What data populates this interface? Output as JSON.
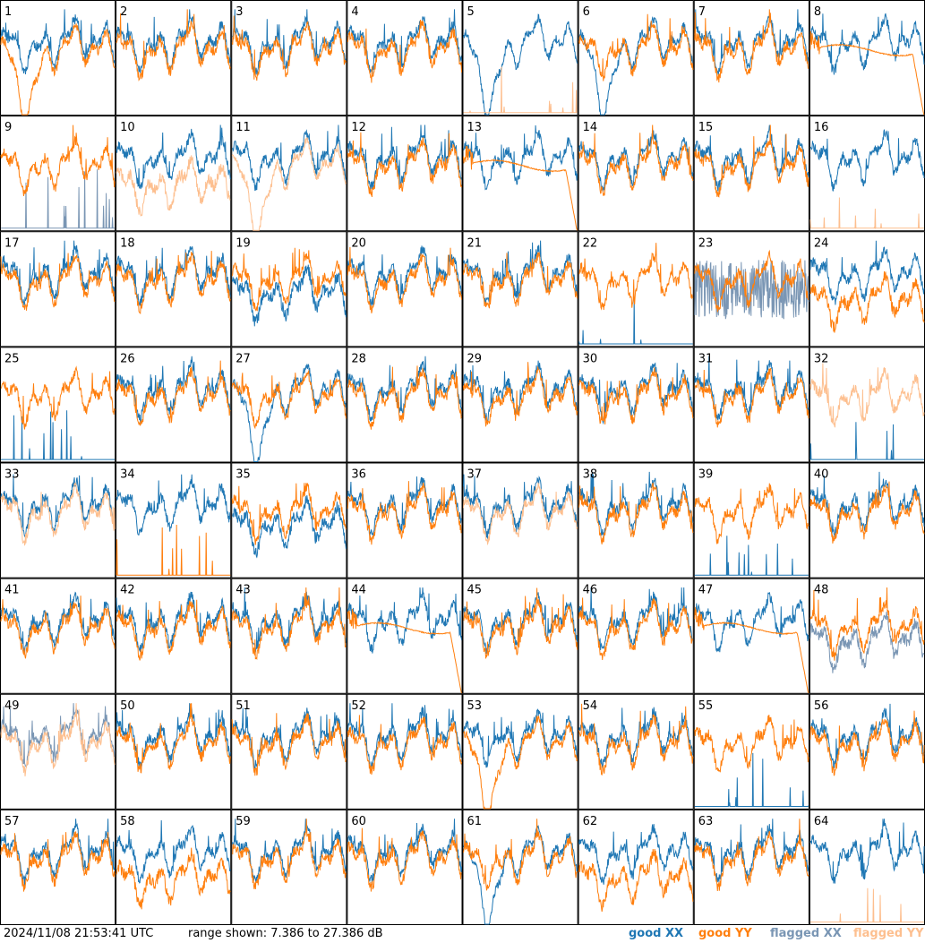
{
  "footer": {
    "timestamp": "2024/11/08 21:53:41 UTC",
    "range_text": "range shown: 7.386 to 27.386 dB"
  },
  "legend": [
    {
      "word": "good",
      "pol": "XX",
      "color": "#1f77b4"
    },
    {
      "word": "good",
      "pol": "YY",
      "color": "#ff7f0e"
    },
    {
      "word": "flagged",
      "pol": "XX",
      "color": "#7a96b4"
    },
    {
      "word": "flagged",
      "pol": "YY",
      "color": "#fdbf8f"
    }
  ],
  "colors": {
    "good_xx": "#1f77b4",
    "good_yy": "#ff7f0e",
    "flagged_xx": "#7a96b4",
    "flagged_yy": "#fdbf8f"
  },
  "chart_data": {
    "type": "line",
    "units": "dB",
    "ylim": [
      7.386,
      27.386
    ],
    "grid": {
      "rows": 8,
      "cols": 8
    },
    "panels": [
      {
        "label": "1",
        "xx": "good",
        "yy": "good",
        "mode": {
          "xx": "normal",
          "yy": "dip"
        }
      },
      {
        "label": "2",
        "xx": "good",
        "yy": "good",
        "mode": {
          "xx": "normal",
          "yy": "normal"
        }
      },
      {
        "label": "3",
        "xx": "good",
        "yy": "good",
        "mode": {
          "xx": "normal",
          "yy": "normal"
        }
      },
      {
        "label": "4",
        "xx": "good",
        "yy": "good",
        "mode": {
          "xx": "normal",
          "yy": "normal"
        }
      },
      {
        "label": "5",
        "xx": "good",
        "yy": "flagged",
        "mode": {
          "xx": "dip",
          "yy": "spikes"
        }
      },
      {
        "label": "6",
        "xx": "good",
        "yy": "good",
        "mode": {
          "xx": "dip",
          "yy": "normal"
        }
      },
      {
        "label": "7",
        "xx": "good",
        "yy": "good",
        "mode": {
          "xx": "normal",
          "yy": "normal"
        }
      },
      {
        "label": "8",
        "xx": "good",
        "yy": "good",
        "mode": {
          "xx": "normal",
          "yy": "flat"
        }
      },
      {
        "label": "9",
        "xx": "flagged",
        "yy": "good",
        "mode": {
          "xx": "spikes",
          "yy": "normal"
        }
      },
      {
        "label": "10",
        "xx": "good",
        "yy": "flagged",
        "mode": {
          "xx": "normal",
          "yy": "low"
        }
      },
      {
        "label": "11",
        "xx": "good",
        "yy": "flagged",
        "mode": {
          "xx": "normal",
          "yy": "dip"
        }
      },
      {
        "label": "12",
        "xx": "good",
        "yy": "good",
        "mode": {
          "xx": "normal",
          "yy": "normal"
        }
      },
      {
        "label": "13",
        "xx": "good",
        "yy": "good",
        "mode": {
          "xx": "normal",
          "yy": "flat"
        }
      },
      {
        "label": "14",
        "xx": "good",
        "yy": "good",
        "mode": {
          "xx": "normal",
          "yy": "normal"
        }
      },
      {
        "label": "15",
        "xx": "good",
        "yy": "good",
        "mode": {
          "xx": "normal",
          "yy": "normal"
        }
      },
      {
        "label": "16",
        "xx": "good",
        "yy": "flagged",
        "mode": {
          "xx": "normal",
          "yy": "spikes"
        }
      },
      {
        "label": "17",
        "xx": "good",
        "yy": "good",
        "mode": {
          "xx": "normal",
          "yy": "normal"
        }
      },
      {
        "label": "18",
        "xx": "good",
        "yy": "good",
        "mode": {
          "xx": "normal",
          "yy": "normal"
        }
      },
      {
        "label": "19",
        "xx": "good",
        "yy": "good",
        "mode": {
          "xx": "low",
          "yy": "normal"
        }
      },
      {
        "label": "20",
        "xx": "good",
        "yy": "good",
        "mode": {
          "xx": "normal",
          "yy": "normal"
        }
      },
      {
        "label": "21",
        "xx": "good",
        "yy": "good",
        "mode": {
          "xx": "normal",
          "yy": "normal"
        }
      },
      {
        "label": "22",
        "xx": "good",
        "yy": "good",
        "mode": {
          "xx": "spikes",
          "yy": "normal"
        }
      },
      {
        "label": "23",
        "xx": "flagged",
        "yy": "good",
        "mode": {
          "xx": "noisy",
          "yy": "normal"
        }
      },
      {
        "label": "24",
        "xx": "good",
        "yy": "good",
        "mode": {
          "xx": "normal",
          "yy": "low"
        }
      },
      {
        "label": "25",
        "xx": "good",
        "yy": "good",
        "mode": {
          "xx": "spikes",
          "yy": "normal"
        }
      },
      {
        "label": "26",
        "xx": "good",
        "yy": "good",
        "mode": {
          "xx": "normal",
          "yy": "normal"
        }
      },
      {
        "label": "27",
        "xx": "good",
        "yy": "good",
        "mode": {
          "xx": "dip",
          "yy": "normal"
        }
      },
      {
        "label": "28",
        "xx": "good",
        "yy": "good",
        "mode": {
          "xx": "normal",
          "yy": "normal"
        }
      },
      {
        "label": "29",
        "xx": "good",
        "yy": "good",
        "mode": {
          "xx": "normal",
          "yy": "normal"
        }
      },
      {
        "label": "30",
        "xx": "good",
        "yy": "good",
        "mode": {
          "xx": "normal",
          "yy": "normal"
        }
      },
      {
        "label": "31",
        "xx": "good",
        "yy": "good",
        "mode": {
          "xx": "normal",
          "yy": "normal"
        }
      },
      {
        "label": "32",
        "xx": "good",
        "yy": "flagged",
        "mode": {
          "xx": "spikes",
          "yy": "normal"
        }
      },
      {
        "label": "33",
        "xx": "good",
        "yy": "flagged",
        "mode": {
          "xx": "normal",
          "yy": "normal"
        }
      },
      {
        "label": "34",
        "xx": "good",
        "yy": "good",
        "mode": {
          "xx": "normal",
          "yy": "spikes"
        }
      },
      {
        "label": "35",
        "xx": "good",
        "yy": "good",
        "mode": {
          "xx": "low",
          "yy": "normal"
        }
      },
      {
        "label": "36",
        "xx": "good",
        "yy": "good",
        "mode": {
          "xx": "normal",
          "yy": "normal"
        }
      },
      {
        "label": "37",
        "xx": "good",
        "yy": "flagged",
        "mode": {
          "xx": "normal",
          "yy": "normal"
        }
      },
      {
        "label": "38",
        "xx": "good",
        "yy": "good",
        "mode": {
          "xx": "normal",
          "yy": "normal"
        }
      },
      {
        "label": "39",
        "xx": "good",
        "yy": "good",
        "mode": {
          "xx": "spikes",
          "yy": "normal"
        }
      },
      {
        "label": "40",
        "xx": "good",
        "yy": "good",
        "mode": {
          "xx": "normal",
          "yy": "normal"
        }
      },
      {
        "label": "41",
        "xx": "good",
        "yy": "good",
        "mode": {
          "xx": "normal",
          "yy": "normal"
        }
      },
      {
        "label": "42",
        "xx": "good",
        "yy": "good",
        "mode": {
          "xx": "normal",
          "yy": "normal"
        }
      },
      {
        "label": "43",
        "xx": "good",
        "yy": "good",
        "mode": {
          "xx": "normal",
          "yy": "normal"
        }
      },
      {
        "label": "44",
        "xx": "good",
        "yy": "good",
        "mode": {
          "xx": "normal",
          "yy": "flat"
        }
      },
      {
        "label": "45",
        "xx": "good",
        "yy": "good",
        "mode": {
          "xx": "normal",
          "yy": "normal"
        }
      },
      {
        "label": "46",
        "xx": "good",
        "yy": "good",
        "mode": {
          "xx": "normal",
          "yy": "normal"
        }
      },
      {
        "label": "47",
        "xx": "good",
        "yy": "good",
        "mode": {
          "xx": "normal",
          "yy": "flat"
        }
      },
      {
        "label": "48",
        "xx": "flagged",
        "yy": "good",
        "mode": {
          "xx": "low",
          "yy": "normal"
        }
      },
      {
        "label": "49",
        "xx": "flagged",
        "yy": "flagged",
        "mode": {
          "xx": "normal",
          "yy": "normal"
        }
      },
      {
        "label": "50",
        "xx": "good",
        "yy": "good",
        "mode": {
          "xx": "normal",
          "yy": "normal"
        }
      },
      {
        "label": "51",
        "xx": "good",
        "yy": "good",
        "mode": {
          "xx": "normal",
          "yy": "normal"
        }
      },
      {
        "label": "52",
        "xx": "good",
        "yy": "good",
        "mode": {
          "xx": "normal",
          "yy": "normal"
        }
      },
      {
        "label": "53",
        "xx": "good",
        "yy": "good",
        "mode": {
          "xx": "normal",
          "yy": "dip"
        }
      },
      {
        "label": "54",
        "xx": "good",
        "yy": "good",
        "mode": {
          "xx": "normal",
          "yy": "normal"
        }
      },
      {
        "label": "55",
        "xx": "good",
        "yy": "good",
        "mode": {
          "xx": "spikes",
          "yy": "normal"
        }
      },
      {
        "label": "56",
        "xx": "good",
        "yy": "good",
        "mode": {
          "xx": "normal",
          "yy": "normal"
        }
      },
      {
        "label": "57",
        "xx": "good",
        "yy": "good",
        "mode": {
          "xx": "normal",
          "yy": "normal"
        }
      },
      {
        "label": "58",
        "xx": "good",
        "yy": "good",
        "mode": {
          "xx": "normal",
          "yy": "low"
        }
      },
      {
        "label": "59",
        "xx": "good",
        "yy": "good",
        "mode": {
          "xx": "normal",
          "yy": "normal"
        }
      },
      {
        "label": "60",
        "xx": "good",
        "yy": "good",
        "mode": {
          "xx": "normal",
          "yy": "normal"
        }
      },
      {
        "label": "61",
        "xx": "good",
        "yy": "good",
        "mode": {
          "xx": "dip",
          "yy": "normal"
        }
      },
      {
        "label": "62",
        "xx": "good",
        "yy": "good",
        "mode": {
          "xx": "normal",
          "yy": "low"
        }
      },
      {
        "label": "63",
        "xx": "good",
        "yy": "good",
        "mode": {
          "xx": "normal",
          "yy": "normal"
        }
      },
      {
        "label": "64",
        "xx": "good",
        "yy": "flagged",
        "mode": {
          "xx": "normal",
          "yy": "spikes"
        }
      }
    ]
  }
}
